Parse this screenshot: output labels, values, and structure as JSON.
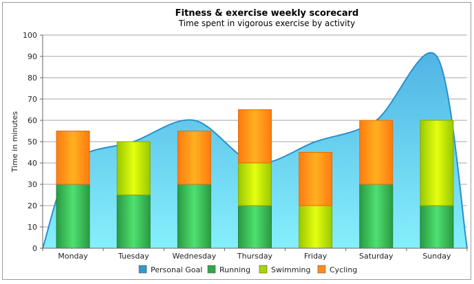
{
  "chart_data": {
    "type": "bar",
    "title": "Fitness & exercise weekly scorecard",
    "subtitle": "Time spent in vigorous exercise by activity",
    "xlabel": "",
    "ylabel": "Time in minutes",
    "ylim": [
      0,
      100
    ],
    "yticks": [
      0,
      10,
      20,
      30,
      40,
      50,
      60,
      70,
      80,
      90,
      100
    ],
    "grid": true,
    "legend_position": "bottom",
    "categories": [
      "Monday",
      "Tuesday",
      "Wednesday",
      "Thursday",
      "Friday",
      "Saturday",
      "Sunday"
    ],
    "area_series": {
      "name": "Personal Goal",
      "type": "spline-area",
      "values": [
        40,
        50,
        60,
        40,
        50,
        60,
        90
      ],
      "start_value": 0,
      "end_value": 0,
      "color": "#3399cc"
    },
    "series": [
      {
        "name": "Running",
        "values": [
          30,
          25,
          30,
          20,
          0,
          30,
          20
        ],
        "color": "#2ea84a"
      },
      {
        "name": "Swimming",
        "values": [
          0,
          25,
          0,
          20,
          20,
          0,
          40
        ],
        "color": "#a8d400"
      },
      {
        "name": "Cycling",
        "values": [
          25,
          0,
          25,
          25,
          25,
          30,
          0
        ],
        "color": "#ff8c1a"
      }
    ]
  }
}
